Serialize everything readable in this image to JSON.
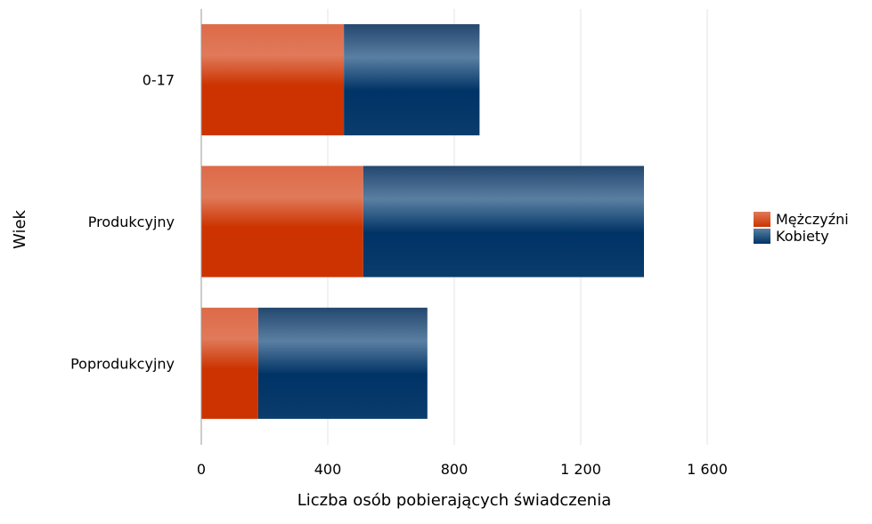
{
  "chart_data": {
    "type": "bar",
    "orientation": "horizontal",
    "stacked": true,
    "categories": [
      "0-17",
      "Produkcyjny",
      "Poprodukcyjny"
    ],
    "series": [
      {
        "name": "Mężczyźni",
        "values": [
          451,
          512,
          180
        ],
        "color": "#cc3300"
      },
      {
        "name": "Kobiety",
        "values": [
          429,
          888,
          535
        ],
        "color": "#003366"
      }
    ],
    "xlabel": "Liczba osób pobierających świadczenia",
    "ylabel": "Wiek",
    "xlim": [
      0,
      1600
    ],
    "xticks": [
      0,
      400,
      800,
      1200,
      1600
    ],
    "xtick_labels": [
      "0",
      "400",
      "800",
      "1 200",
      "1 600"
    ],
    "grid": "vertical",
    "legend_position": "right"
  }
}
